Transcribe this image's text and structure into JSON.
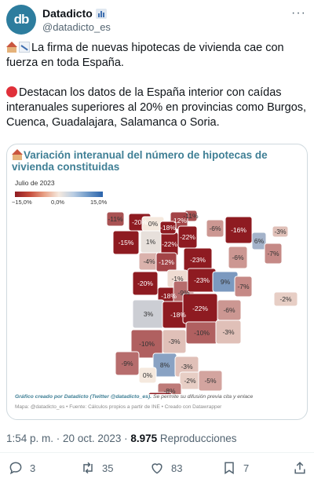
{
  "author": {
    "avatar_text": "db",
    "display_name": "Datadicto",
    "handle": "@datadicto_es",
    "more_label": "···"
  },
  "tweet": {
    "line1": "La firma de nuevas hipotecas de vivienda cae con fuerza en toda España.",
    "line2": "Destacan los datos de la España interior con caídas interanuales superiores al 20% en provincias como Burgos, Cuenca, Guadalajara, Salamanca o Soria."
  },
  "chart": {
    "title": "Variación interanual del número de hipotecas de vivienda constituidas",
    "subtitle": "Julio de 2023",
    "legend": {
      "min": "−15,0%",
      "mid": "0,0%",
      "max": "15,0%"
    },
    "credit_bold": "Gráfico creado por Datadicto (Twitter @datadicto_es).",
    "credit_rest": " Se permite su difusión previa cita y enlace",
    "source": "Mapa: @datadicto_es • Fuente: Cálculos propios a partir de INE • Creado con Datawrapper"
  },
  "chart_data": {
    "type": "choropleth",
    "title": "Variación interanual del número de hipotecas de vivienda constituidas",
    "subtitle": "Julio de 2023",
    "legend_range": [
      -15.0,
      15.0
    ],
    "values_percent": [
      -20,
      -11,
      -15,
      0,
      -11,
      -12,
      -6,
      1,
      -22,
      -22,
      -18,
      -16,
      6,
      -3,
      -4,
      -12,
      -23,
      -7,
      -1,
      -6,
      -20,
      -18,
      -9,
      -23,
      9,
      -7,
      3,
      -18,
      -22,
      -2,
      -6,
      -10,
      -3,
      -10,
      -3,
      -9,
      8,
      -3,
      0,
      -2,
      -5,
      -8,
      -23,
      0
    ]
  },
  "meta": {
    "time": "1:54 p. m.",
    "sep": " · ",
    "date": "20 oct. 2023",
    "views": "8.975",
    "views_label": " Reproducciones"
  },
  "actions": {
    "replies": "3",
    "retweets": "35",
    "likes": "83",
    "bookmarks": "7"
  },
  "colors": {
    "accent": "#3f7f95",
    "dark_red": "#a3242a",
    "blue": "#2a63ab"
  }
}
